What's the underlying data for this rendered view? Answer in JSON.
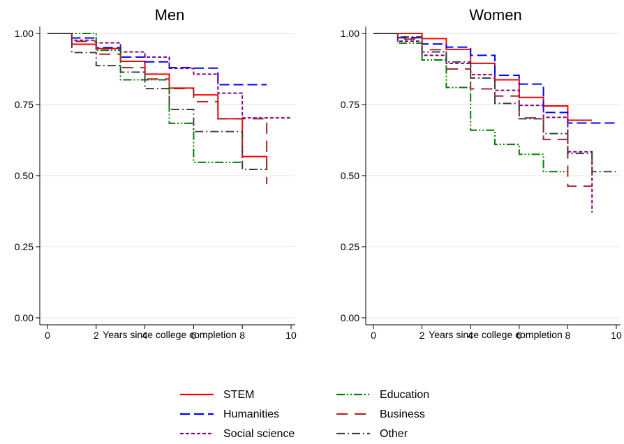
{
  "chart_data": [
    {
      "type": "line",
      "step": true,
      "title": "Men",
      "xlabel": "Years since college completion",
      "ylabel": "",
      "xlim": [
        0,
        10
      ],
      "ylim": [
        0,
        1
      ],
      "xticks": [
        "0",
        "2",
        "4",
        "6",
        "8",
        "10"
      ],
      "yticks": [
        "0.00",
        "0.25",
        "0.50",
        "0.75",
        "1.00"
      ],
      "grid": true,
      "series": [
        {
          "name": "STEM",
          "color": "#ff0000",
          "dash": "solid",
          "x": [
            0,
            1,
            2,
            3,
            4,
            5,
            6,
            7,
            8,
            9
          ],
          "y": [
            1.0,
            0.962,
            0.947,
            0.902,
            0.857,
            0.808,
            0.784,
            0.7,
            0.567,
            0.52
          ]
        },
        {
          "name": "Humanities",
          "color": "#0000ff",
          "dash": "long-dash",
          "x": [
            0,
            1,
            2,
            3,
            4,
            5,
            6,
            7,
            8,
            9
          ],
          "y": [
            1.0,
            0.984,
            0.95,
            0.917,
            0.9,
            0.88,
            0.878,
            0.82,
            0.82,
            0.82
          ]
        },
        {
          "name": "Social science",
          "color": "#800080",
          "dash": "short-dash",
          "x": [
            0,
            1,
            2,
            3,
            4,
            5,
            6,
            7,
            8,
            9,
            10
          ],
          "y": [
            1.0,
            0.976,
            0.967,
            0.935,
            0.917,
            0.877,
            0.857,
            0.79,
            0.703,
            0.703,
            0.703
          ]
        },
        {
          "name": "Education",
          "color": "#008000",
          "dash": "dash-dot-dot",
          "x": [
            0,
            1,
            2,
            3,
            4,
            5,
            6,
            7,
            8
          ],
          "y": [
            1.0,
            1.0,
            0.941,
            0.837,
            0.837,
            0.684,
            0.547,
            0.547,
            0.547
          ]
        },
        {
          "name": "Business",
          "color": "#a52a2a",
          "dash": "long-dash-gap",
          "x": [
            0,
            1,
            2,
            3,
            4,
            5,
            6,
            7,
            8,
            9
          ],
          "y": [
            1.0,
            0.972,
            0.927,
            0.88,
            0.84,
            0.806,
            0.76,
            0.7,
            0.7,
            0.47
          ]
        },
        {
          "name": "Other",
          "color": "#404040",
          "dash": "dash-dot",
          "x": [
            0,
            1,
            2,
            3,
            4,
            5,
            6,
            7,
            8,
            9
          ],
          "y": [
            1.0,
            0.933,
            0.887,
            0.864,
            0.806,
            0.733,
            0.655,
            0.655,
            0.522,
            0.522
          ]
        }
      ]
    },
    {
      "type": "line",
      "step": true,
      "title": "Women",
      "xlabel": "Years since college completion",
      "ylabel": "",
      "xlim": [
        0,
        10
      ],
      "ylim": [
        0,
        1
      ],
      "xticks": [
        "0",
        "2",
        "4",
        "6",
        "8",
        "10"
      ],
      "yticks": [
        "0.00",
        "0.25",
        "0.50",
        "0.75",
        "1.00"
      ],
      "grid": true,
      "series": [
        {
          "name": "STEM",
          "color": "#ff0000",
          "dash": "solid",
          "x": [
            0,
            2,
            3,
            4,
            5,
            6,
            7,
            8,
            9
          ],
          "y": [
            1.0,
            0.982,
            0.944,
            0.895,
            0.837,
            0.775,
            0.745,
            0.695,
            0.695
          ]
        },
        {
          "name": "Humanities",
          "color": "#0000ff",
          "dash": "long-dash",
          "x": [
            0,
            1,
            2,
            3,
            4,
            5,
            6,
            7,
            8,
            9,
            10
          ],
          "y": [
            1.0,
            0.985,
            0.963,
            0.952,
            0.923,
            0.853,
            0.822,
            0.722,
            0.685,
            0.685,
            0.685
          ]
        },
        {
          "name": "Social science",
          "color": "#800080",
          "dash": "short-dash",
          "x": [
            0,
            1,
            2,
            3,
            4,
            5,
            6,
            7,
            8,
            9
          ],
          "y": [
            1.0,
            0.973,
            0.923,
            0.895,
            0.855,
            0.8,
            0.747,
            0.705,
            0.584,
            0.37
          ]
        },
        {
          "name": "Education",
          "color": "#008000",
          "dash": "dash-dot-dot",
          "x": [
            0,
            1,
            2,
            3,
            4,
            5,
            6,
            7,
            8
          ],
          "y": [
            1.0,
            0.966,
            0.907,
            0.81,
            0.66,
            0.61,
            0.575,
            0.514,
            0.514
          ]
        },
        {
          "name": "Business",
          "color": "#a52a2a",
          "dash": "long-dash-gap",
          "x": [
            0,
            1,
            2,
            3,
            4,
            5,
            6,
            7,
            8,
            9
          ],
          "y": [
            1.0,
            0.98,
            0.943,
            0.875,
            0.805,
            0.78,
            0.703,
            0.627,
            0.463,
            0.463
          ]
        },
        {
          "name": "Other",
          "color": "#404040",
          "dash": "dash-dot",
          "x": [
            0,
            1,
            2,
            3,
            4,
            5,
            6,
            7,
            8,
            9,
            10
          ],
          "y": [
            1.0,
            0.988,
            0.935,
            0.9,
            0.843,
            0.754,
            0.7,
            0.648,
            0.578,
            0.514,
            0.514
          ]
        }
      ]
    }
  ],
  "legend": {
    "placement": "bottom",
    "items": [
      {
        "label": "STEM",
        "color": "#ff0000",
        "dash": "solid"
      },
      {
        "label": "Education",
        "color": "#008000",
        "dash": "dash-dot-dot"
      },
      {
        "label": "Humanities",
        "color": "#0000ff",
        "dash": "long-dash"
      },
      {
        "label": "Business",
        "color": "#a52a2a",
        "dash": "long-dash-gap"
      },
      {
        "label": "Social science",
        "color": "#800080",
        "dash": "short-dash"
      },
      {
        "label": "Other",
        "color": "#404040",
        "dash": "dash-dot"
      }
    ]
  }
}
